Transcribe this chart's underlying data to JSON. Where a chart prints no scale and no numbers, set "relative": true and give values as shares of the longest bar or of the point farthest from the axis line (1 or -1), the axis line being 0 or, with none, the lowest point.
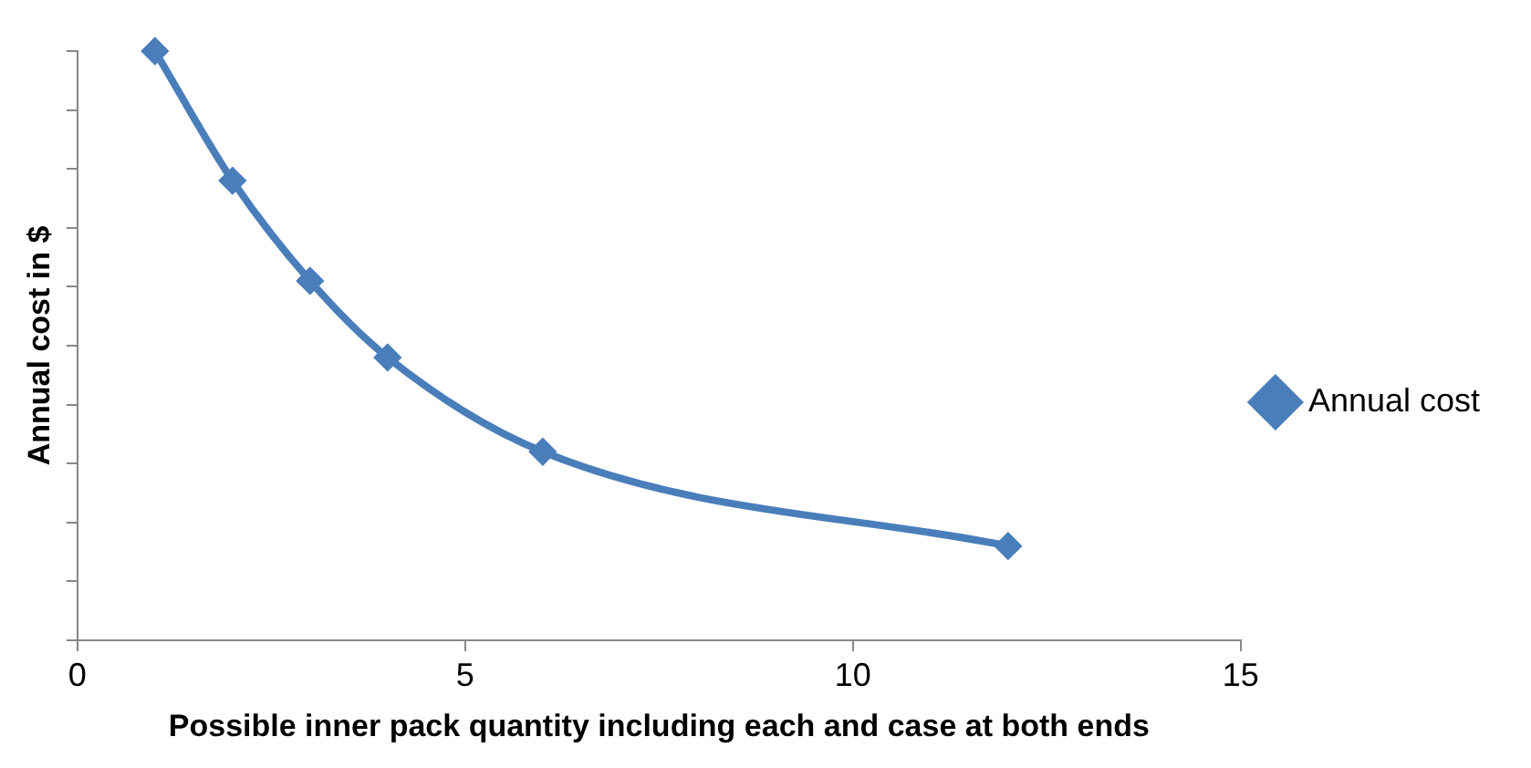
{
  "chart_data": {
    "type": "line",
    "relative": true,
    "xlabel": "Possible inner pack quantity including each and case at both ends",
    "ylabel": "Annual cost in $",
    "xlim": [
      0,
      15
    ],
    "xticks": [
      0,
      5,
      10,
      15
    ],
    "x": [
      1,
      2,
      3,
      4,
      6,
      12
    ],
    "series": [
      {
        "name": "Annual cost",
        "color": "#4a7ebb",
        "values": [
          1,
          0.78,
          0.61,
          0.48,
          0.32,
          0.16
        ]
      }
    ],
    "marker": "diamond",
    "grid": false,
    "legend": "right"
  }
}
